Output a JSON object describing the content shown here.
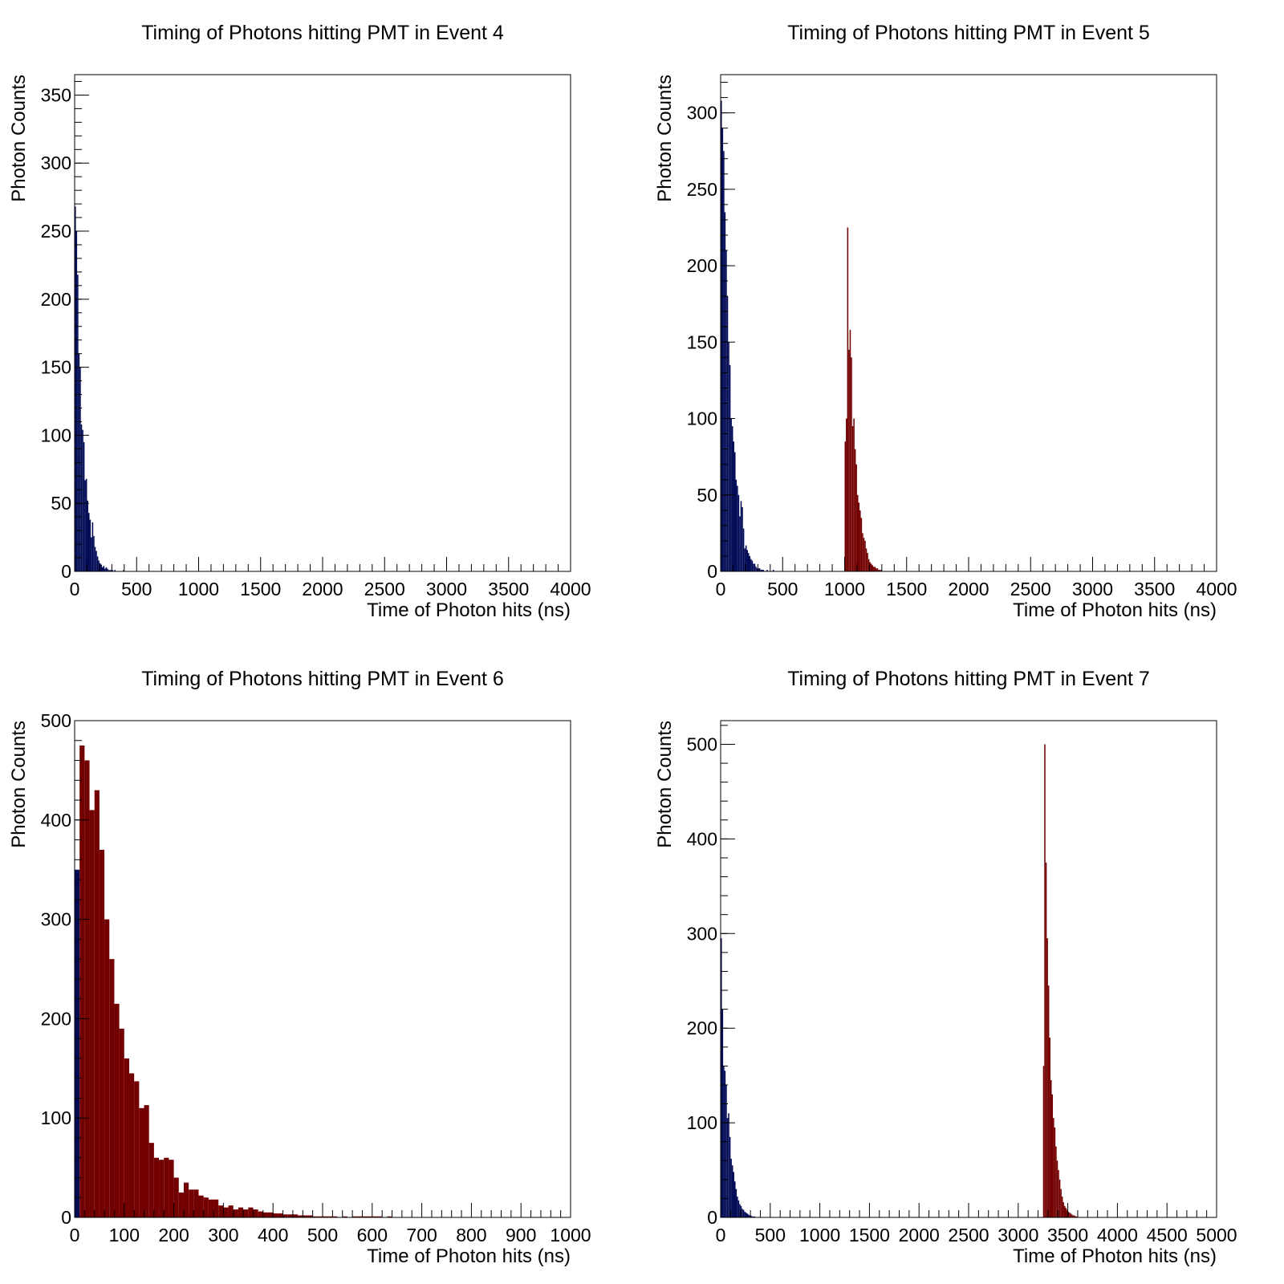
{
  "colors": {
    "early": "#000a55",
    "late": "#730000",
    "frame": "#000000",
    "background": "#ffffff"
  },
  "chart_data": [
    {
      "type": "bar",
      "title": "Timing of Photons hitting PMT in Event 4",
      "xlabel": "Time of Photon hits (ns)",
      "ylabel": "Photon Counts",
      "xlim": [
        0,
        4000
      ],
      "ylim": [
        0,
        365
      ],
      "xticks": [
        0,
        500,
        1000,
        1500,
        2000,
        2500,
        3000,
        3500,
        4000
      ],
      "yticks": [
        0,
        50,
        100,
        150,
        200,
        250,
        300,
        350
      ],
      "grid": false,
      "series": [
        {
          "color": "early",
          "bin_start": 0,
          "bin_width": 10,
          "values": [
            268,
            250,
            218,
            160,
            150,
            108,
            104,
            95,
            67,
            68,
            52,
            43,
            38,
            25,
            36,
            26,
            18,
            15,
            11,
            8,
            6,
            5,
            3,
            4,
            2,
            3,
            2,
            1,
            1,
            1,
            1,
            0,
            1,
            0,
            0,
            0,
            0,
            0,
            0,
            1
          ]
        }
      ]
    },
    {
      "type": "bar",
      "title": "Timing of Photons hitting PMT in Event 5",
      "xlabel": "Time of Photon hits (ns)",
      "ylabel": "Photon Counts",
      "xlim": [
        0,
        4000
      ],
      "ylim": [
        0,
        325
      ],
      "xticks": [
        0,
        500,
        1000,
        1500,
        2000,
        2500,
        3000,
        3500,
        4000
      ],
      "yticks": [
        0,
        50,
        100,
        150,
        200,
        250,
        300
      ],
      "grid": false,
      "series": [
        {
          "color": "early",
          "bin_start": 0,
          "bin_width": 10,
          "values": [
            308,
            290,
            275,
            235,
            210,
            180,
            150,
            135,
            100,
            95,
            85,
            78,
            60,
            56,
            50,
            36,
            46,
            42,
            28,
            15,
            17,
            14,
            12,
            10,
            8,
            7,
            5,
            5,
            3,
            2,
            2,
            2,
            1,
            1,
            1,
            0,
            0,
            1,
            0,
            0,
            0,
            0,
            1
          ]
        },
        {
          "color": "late",
          "bin_start": 1000,
          "bin_width": 10,
          "values": [
            85,
            100,
            225,
            145,
            158,
            140,
            95,
            100,
            80,
            70,
            50,
            45,
            40,
            35,
            25,
            22,
            20,
            15,
            12,
            8,
            6,
            5,
            4,
            3,
            3,
            2,
            2,
            1,
            1,
            1
          ]
        }
      ]
    },
    {
      "type": "bar",
      "title": "Timing of Photons hitting PMT in Event 6",
      "xlabel": "Time of Photon hits (ns)",
      "ylabel": "Photon Counts",
      "xlim": [
        0,
        1000
      ],
      "ylim": [
        0,
        500
      ],
      "xticks": [
        0,
        100,
        200,
        300,
        400,
        500,
        600,
        700,
        800,
        900,
        1000
      ],
      "yticks": [
        0,
        100,
        200,
        300,
        400,
        500
      ],
      "grid": false,
      "series": [
        {
          "color": "early",
          "bin_start": 0,
          "bin_width": 10,
          "values": [
            350
          ]
        },
        {
          "color": "late",
          "bin_start": 10,
          "bin_width": 10,
          "values": [
            475,
            460,
            410,
            430,
            370,
            300,
            260,
            215,
            190,
            160,
            145,
            137,
            110,
            113,
            75,
            60,
            58,
            60,
            58,
            40,
            25,
            35,
            28,
            28,
            22,
            20,
            18,
            18,
            12,
            10,
            12,
            8,
            10,
            8,
            10,
            8,
            6,
            5,
            5,
            4,
            4,
            3,
            3,
            3,
            2,
            2,
            2,
            1,
            1,
            1,
            1,
            1,
            0,
            1,
            0,
            1,
            1,
            1,
            1,
            1,
            1,
            0,
            1
          ]
        }
      ]
    },
    {
      "type": "bar",
      "title": "Timing of Photons hitting PMT in Event 7",
      "xlabel": "Time of Photon hits (ns)",
      "ylabel": "Photon Counts",
      "xlim": [
        0,
        5000
      ],
      "ylim": [
        0,
        525
      ],
      "xticks": [
        0,
        500,
        1000,
        1500,
        2000,
        2500,
        3000,
        3500,
        4000,
        4500,
        5000
      ],
      "yticks": [
        0,
        100,
        200,
        300,
        400,
        500
      ],
      "grid": false,
      "series": [
        {
          "color": "early",
          "bin_start": 0,
          "bin_width": 12.5,
          "values": [
            295,
            220,
            160,
            155,
            140,
            105,
            110,
            85,
            62,
            55,
            48,
            38,
            30,
            22,
            18,
            14,
            12,
            9,
            8,
            6,
            5,
            4,
            3,
            2,
            2,
            1,
            1,
            1
          ]
        },
        {
          "color": "late",
          "bin_start": 3250,
          "bin_width": 12.5,
          "values": [
            160,
            500,
            375,
            295,
            245,
            190,
            145,
            130,
            105,
            95,
            75,
            60,
            50,
            40,
            30,
            22,
            16,
            12,
            10,
            8,
            6,
            5,
            4,
            3,
            2,
            2,
            1,
            1
          ]
        }
      ]
    }
  ]
}
